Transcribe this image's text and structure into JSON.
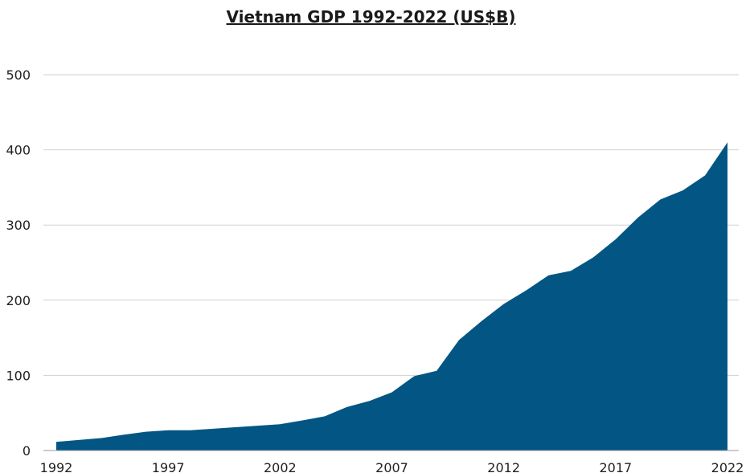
{
  "chart_data": {
    "type": "area",
    "title": "Vietnam GDP 1992-2022 (US$B)",
    "xlabel": "",
    "ylabel": "",
    "x": [
      1992,
      1993,
      1994,
      1995,
      1996,
      1997,
      1998,
      1999,
      2000,
      2001,
      2002,
      2003,
      2004,
      2005,
      2006,
      2007,
      2008,
      2009,
      2010,
      2011,
      2012,
      2013,
      2014,
      2015,
      2016,
      2017,
      2018,
      2019,
      2020,
      2021,
      2022
    ],
    "series": [
      {
        "values": [
          11.5,
          14,
          16.5,
          21,
          25,
          27,
          27,
          29,
          31,
          33,
          35,
          40,
          45.5,
          58,
          66,
          77.5,
          99,
          106,
          147,
          172,
          195,
          213,
          233,
          239,
          257,
          281,
          310,
          334,
          346,
          366,
          410
        ],
        "color": "#035683"
      }
    ],
    "xlim": [
      1992,
      2022
    ],
    "ylim": [
      0,
      500
    ],
    "x_ticks": [
      "1992",
      "1997",
      "2002",
      "2007",
      "2012",
      "2017",
      "2022"
    ],
    "y_ticks": [
      "0",
      "100",
      "200",
      "300",
      "400",
      "500"
    ],
    "grid": "horizontal",
    "legend": "none"
  }
}
